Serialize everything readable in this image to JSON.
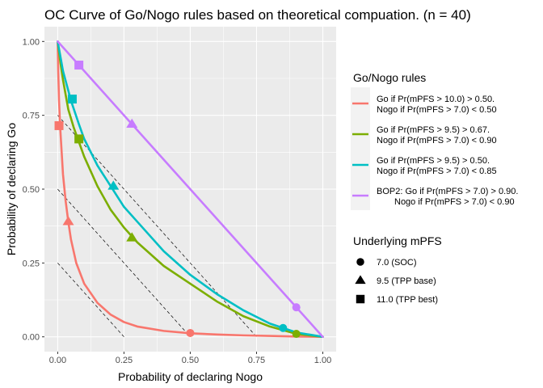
{
  "chart_data": {
    "type": "line",
    "title": "OC Curve of Go/Nogo rules based on theoretical compuation. (n = 40)",
    "xlabel": "Probability of declaring Nogo",
    "ylabel": "Probability of declaring Go",
    "xlim": [
      0,
      1
    ],
    "ylim": [
      0,
      1
    ],
    "x_ticks": [
      "0.00",
      "0.25",
      "0.50",
      "0.75",
      "1.00"
    ],
    "y_ticks": [
      "0.00",
      "0.25",
      "0.50",
      "0.75",
      "1.00"
    ],
    "grid": true,
    "reference_lines": [
      {
        "from": [
          0,
          0.25
        ],
        "to": [
          0.25,
          0
        ]
      },
      {
        "from": [
          0,
          0.5
        ],
        "to": [
          0.5,
          0
        ]
      },
      {
        "from": [
          0,
          0.75
        ],
        "to": [
          0.75,
          0
        ]
      },
      {
        "from": [
          0,
          1.0
        ],
        "to": [
          1.0,
          0
        ]
      }
    ],
    "legend_rules": {
      "title": "Go/Nogo rules",
      "position": "right",
      "entries": [
        {
          "lines": [
            "Go if Pr(mPFS > 10.0) > 0.50.",
            "Nogo if Pr(mPFS > 7.0) < 0.50"
          ],
          "color": "#F8766D"
        },
        {
          "lines": [
            "Go if Pr(mPFS > 9.5) > 0.67.",
            "Nogo if Pr(mPFS > 7.0) < 0.90"
          ],
          "color": "#7CAE00"
        },
        {
          "lines": [
            "Go if Pr(mPFS > 9.5) > 0.50.",
            "Nogo if Pr(mPFS > 7.0) < 0.85"
          ],
          "color": "#00BFC4"
        },
        {
          "lines": [
            "BOP2: Go if Pr(mPFS > 7.0) > 0.90.",
            "Nogo if Pr(mPFS > 7.0) < 0.90"
          ],
          "color": "#C77CFF"
        }
      ]
    },
    "legend_mpfs": {
      "title": "Underlying mPFS",
      "entries": [
        {
          "label": "7.0 (SOC)",
          "shape": "circle"
        },
        {
          "label": "9.5 (TPP base)",
          "shape": "triangle"
        },
        {
          "label": "11.0 (TPP best)",
          "shape": "square"
        }
      ]
    },
    "series": [
      {
        "name": "Go if Pr(mPFS > 10.0) > 0.50. Nogo if Pr(mPFS > 7.0) < 0.50",
        "color": "#F8766D",
        "x": [
          0,
          0.002,
          0.005,
          0.01,
          0.02,
          0.03,
          0.04,
          0.05,
          0.07,
          0.1,
          0.15,
          0.2,
          0.25,
          0.3,
          0.4,
          0.5,
          0.6,
          0.7,
          0.8,
          0.9,
          1.0
        ],
        "y": [
          1.0,
          0.9,
          0.8,
          0.7,
          0.55,
          0.46,
          0.39,
          0.33,
          0.25,
          0.18,
          0.115,
          0.075,
          0.05,
          0.035,
          0.02,
          0.012,
          0.008,
          0.005,
          0.003,
          0.001,
          0.0
        ],
        "markers": [
          {
            "x": 0.5,
            "y": 0.013,
            "shape": "circle"
          },
          {
            "x": 0.04,
            "y": 0.39,
            "shape": "triangle"
          },
          {
            "x": 0.005,
            "y": 0.715,
            "shape": "square"
          }
        ]
      },
      {
        "name": "Go if Pr(mPFS > 9.5) > 0.67. Nogo if Pr(mPFS > 7.0) < 0.90",
        "color": "#7CAE00",
        "x": [
          0,
          0.01,
          0.02,
          0.04,
          0.06,
          0.08,
          0.1,
          0.15,
          0.2,
          0.25,
          0.3,
          0.4,
          0.5,
          0.6,
          0.7,
          0.8,
          0.9,
          1.0
        ],
        "y": [
          1.0,
          0.93,
          0.87,
          0.77,
          0.71,
          0.66,
          0.61,
          0.51,
          0.43,
          0.37,
          0.32,
          0.24,
          0.18,
          0.12,
          0.07,
          0.035,
          0.01,
          0.0
        ],
        "markers": [
          {
            "x": 0.9,
            "y": 0.01,
            "shape": "circle"
          },
          {
            "x": 0.28,
            "y": 0.335,
            "shape": "triangle"
          },
          {
            "x": 0.08,
            "y": 0.67,
            "shape": "square"
          }
        ]
      },
      {
        "name": "Go if Pr(mPFS > 9.5) > 0.50. Nogo if Pr(mPFS > 7.0) < 0.85",
        "color": "#00BFC4",
        "x": [
          0,
          0.01,
          0.02,
          0.05,
          0.08,
          0.1,
          0.15,
          0.2,
          0.25,
          0.3,
          0.4,
          0.5,
          0.6,
          0.7,
          0.8,
          0.85,
          0.9,
          1.0
        ],
        "y": [
          1.0,
          0.95,
          0.9,
          0.8,
          0.72,
          0.67,
          0.58,
          0.51,
          0.44,
          0.39,
          0.29,
          0.21,
          0.145,
          0.09,
          0.045,
          0.03,
          0.015,
          0.0
        ],
        "markers": [
          {
            "x": 0.85,
            "y": 0.03,
            "shape": "circle"
          },
          {
            "x": 0.21,
            "y": 0.51,
            "shape": "triangle"
          },
          {
            "x": 0.055,
            "y": 0.805,
            "shape": "square"
          }
        ]
      },
      {
        "name": "BOP2: Go if Pr(mPFS > 7.0) > 0.90. Nogo if Pr(mPFS > 7.0) < 0.90",
        "color": "#C77CFF",
        "x": [
          0,
          0.08,
          0.28,
          0.5,
          0.9,
          1.0
        ],
        "y": [
          1.0,
          0.92,
          0.72,
          0.5,
          0.1,
          0.0
        ],
        "markers": [
          {
            "x": 0.9,
            "y": 0.1,
            "shape": "circle"
          },
          {
            "x": 0.28,
            "y": 0.72,
            "shape": "triangle"
          },
          {
            "x": 0.08,
            "y": 0.92,
            "shape": "square"
          }
        ]
      }
    ]
  }
}
